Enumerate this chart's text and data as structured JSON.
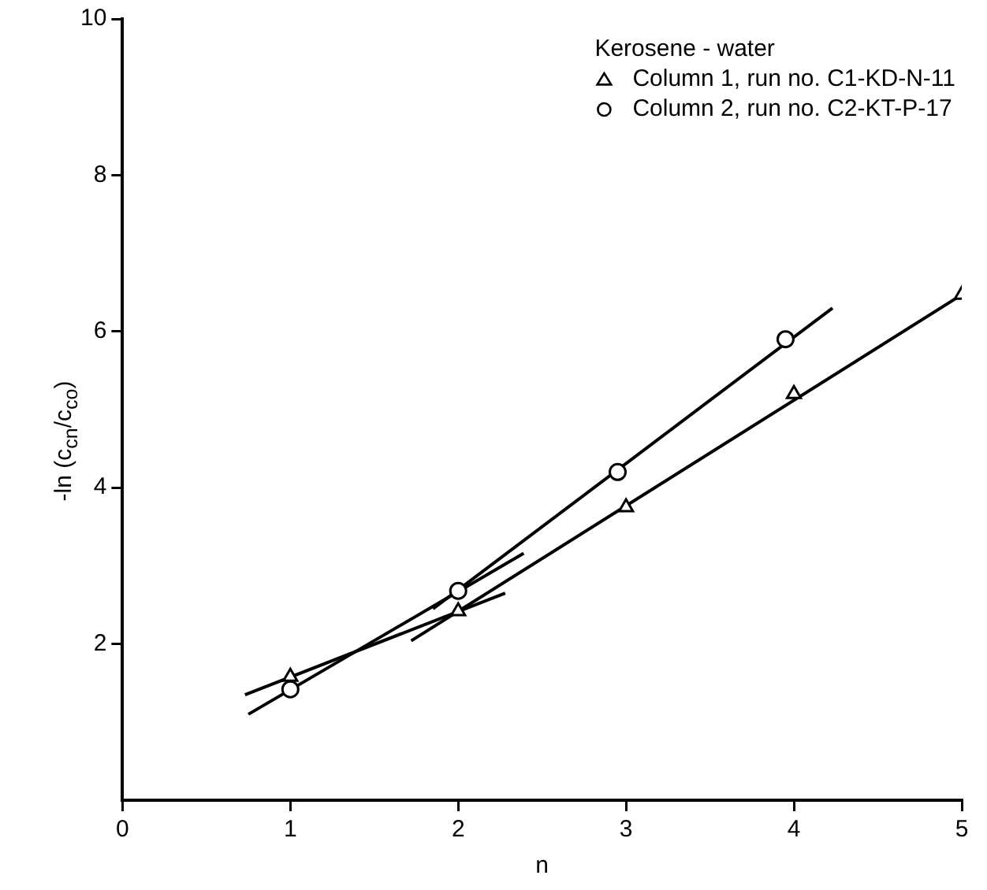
{
  "chart_data": {
    "type": "scatter",
    "xlabel": "n",
    "ylabel": "-ln (c$_{cn}$/c$_{co}$)",
    "legend_title": "Kerosene - water",
    "legend": "top right",
    "grid": false,
    "xlim": [
      0,
      5
    ],
    "xticks": [
      0,
      1,
      2,
      3,
      4,
      5
    ],
    "ylim": [
      0,
      10
    ],
    "yticks": [
      2,
      4,
      6,
      8,
      10
    ],
    "series": [
      {
        "name": "Column 1, run no. C1-KD-N-11",
        "marker": "triangle",
        "color": "#000000",
        "x": [
          1,
          2,
          3,
          4,
          5
        ],
        "values": [
          1.58,
          2.42,
          3.75,
          5.2,
          6.47
        ]
      },
      {
        "name": "Column 2, run no. C2-KT-P-17",
        "marker": "circle",
        "color": "#000000",
        "x": [
          1,
          2,
          2.95,
          3.95
        ],
        "values": [
          1.42,
          2.68,
          4.2,
          5.9
        ]
      },
      {
        "type": "line",
        "marker": "none",
        "color": "#000000",
        "x": [
          0.73,
          2.28
        ],
        "values": [
          1.35,
          2.65
        ]
      },
      {
        "type": "line",
        "marker": "none",
        "color": "#000000",
        "x": [
          0.75,
          2.39
        ],
        "values": [
          1.1,
          3.16
        ]
      },
      {
        "type": "line",
        "marker": "none",
        "color": "#000000",
        "x": [
          1.72,
          5
        ],
        "values": [
          2.04,
          6.47
        ]
      },
      {
        "type": "line",
        "marker": "none",
        "color": "#000000",
        "x": [
          1.85,
          4.23
        ],
        "values": [
          2.45,
          6.3
        ]
      }
    ]
  }
}
